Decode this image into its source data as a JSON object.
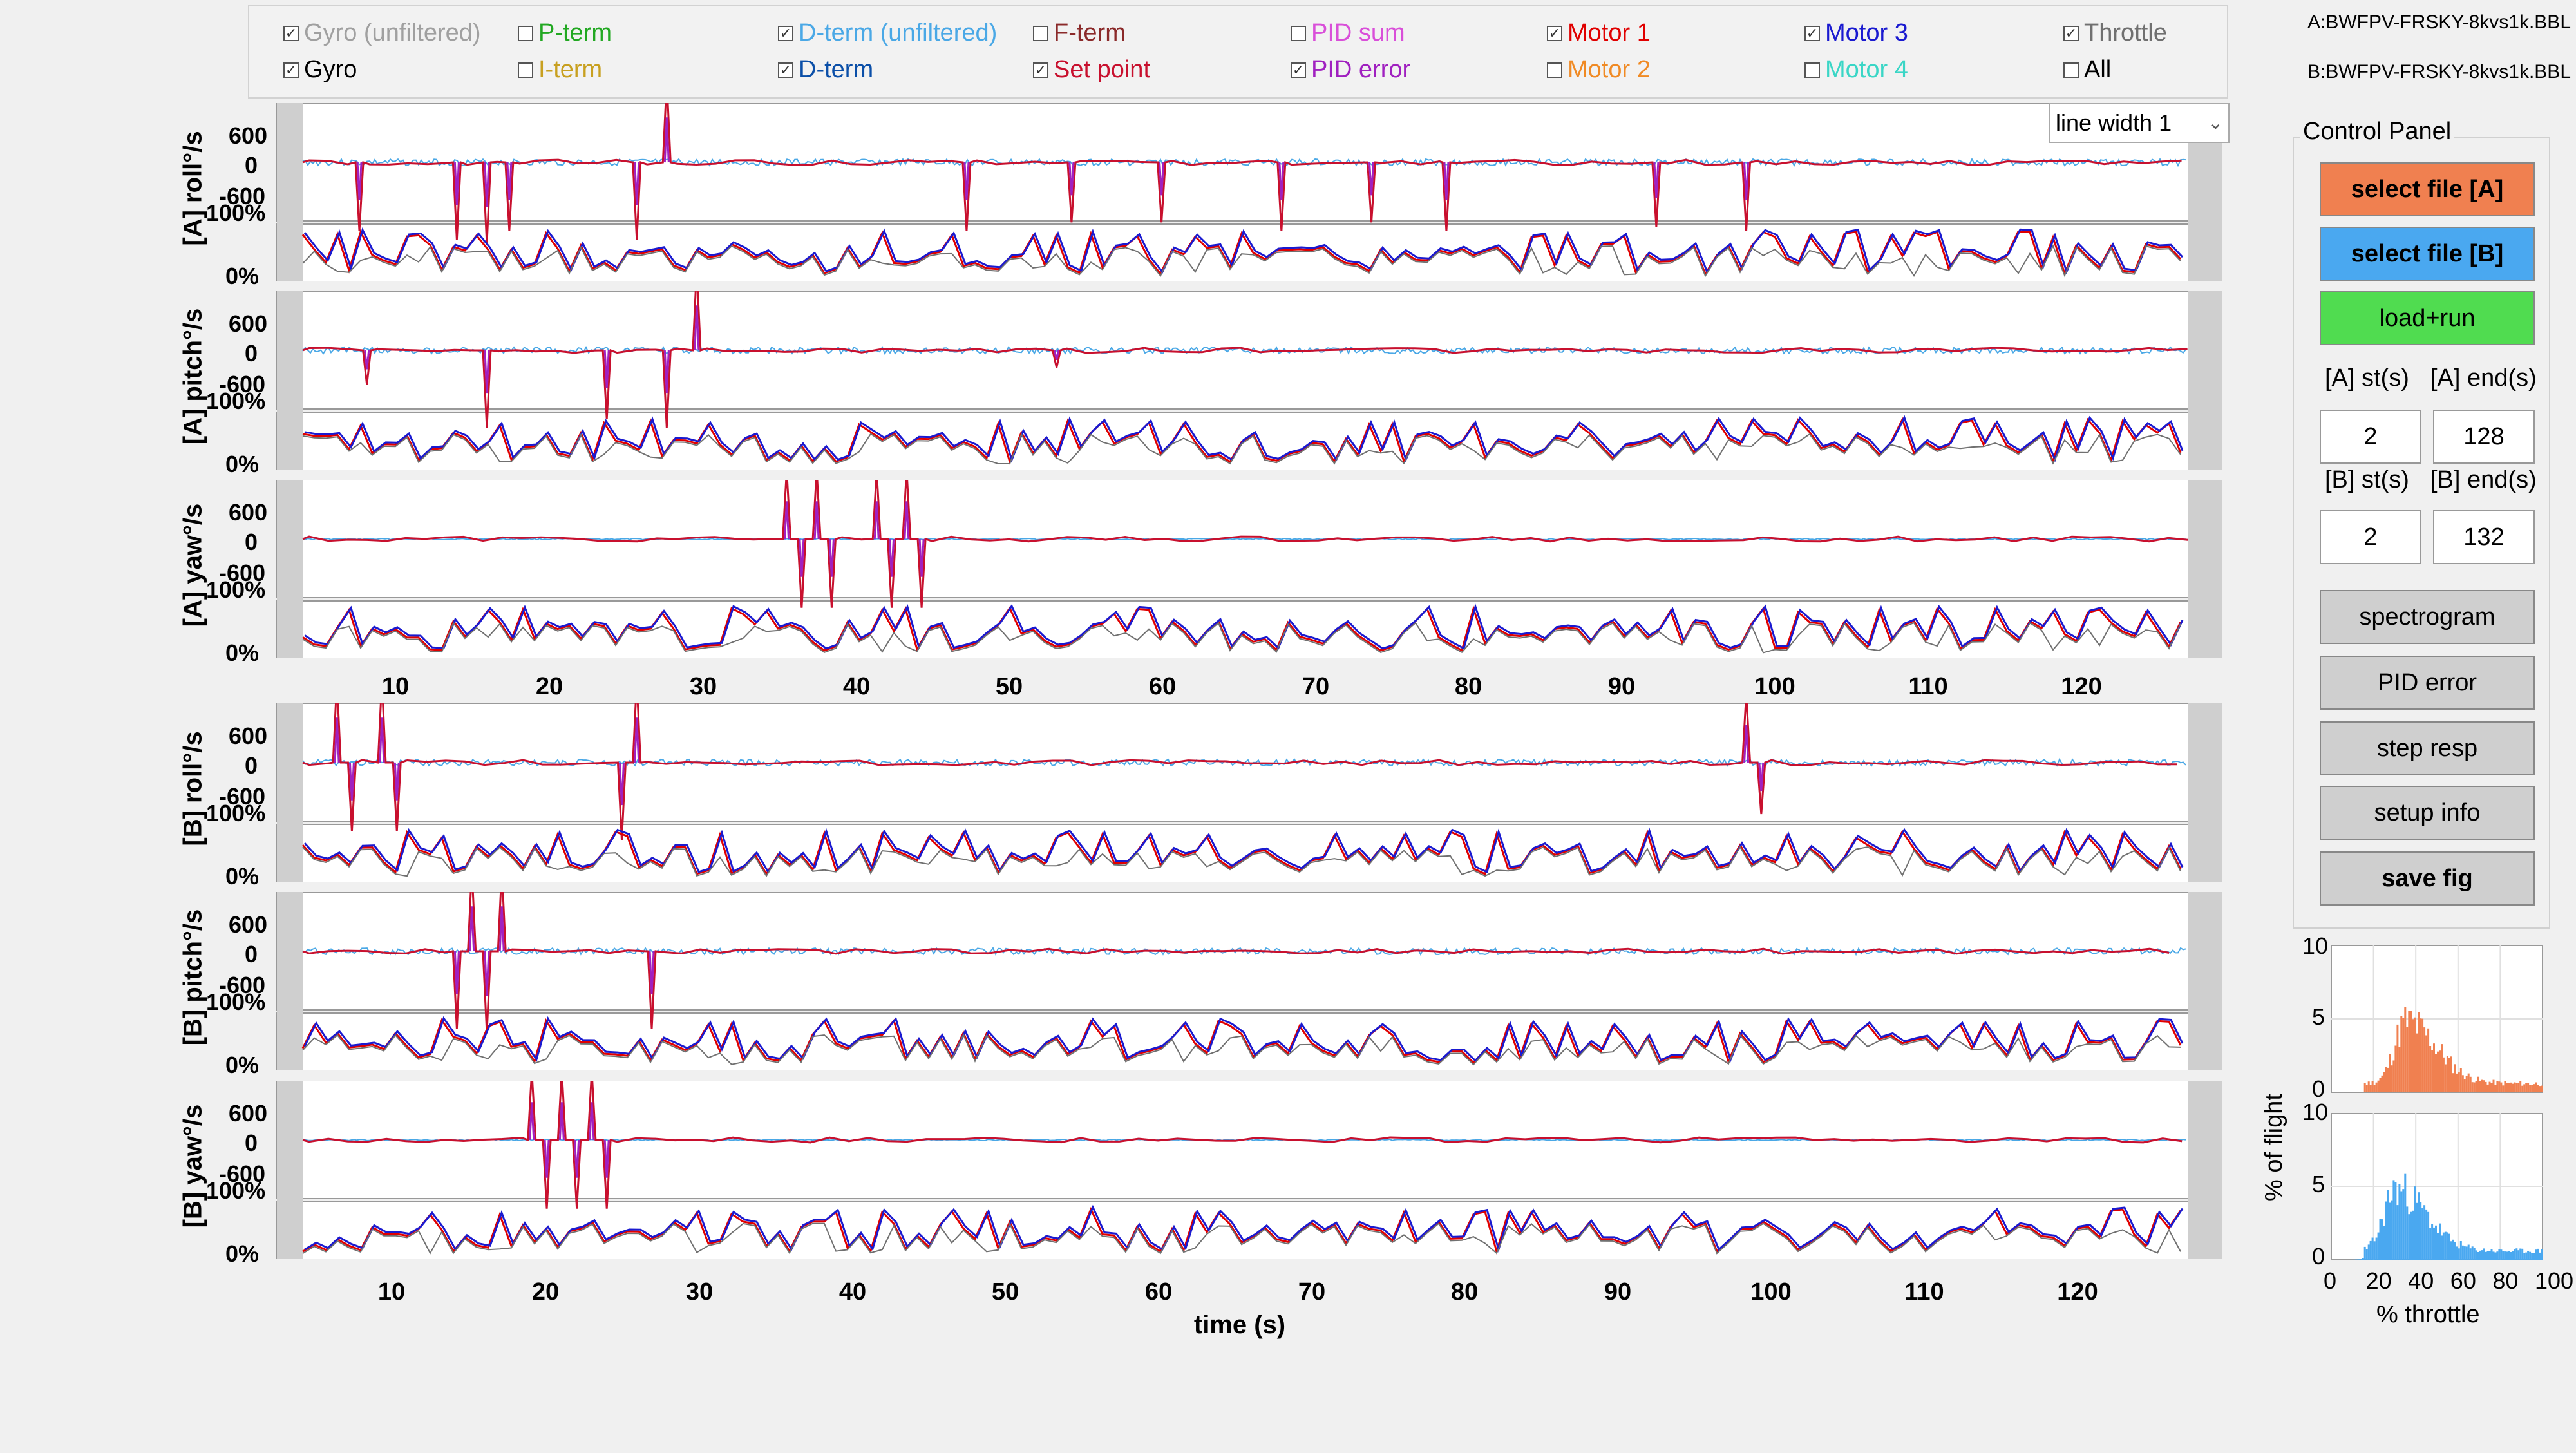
{
  "legend": {
    "items": [
      {
        "label": "Gyro (unfiltered)",
        "checked": true,
        "color": "#a0a0a0"
      },
      {
        "label": "Gyro",
        "checked": true,
        "color": "#000000"
      },
      {
        "label": "P-term",
        "checked": false,
        "color": "#22a822"
      },
      {
        "label": "I-term",
        "checked": false,
        "color": "#c8a020"
      },
      {
        "label": "D-term (unfiltered)",
        "checked": true,
        "color": "#4aa8e6"
      },
      {
        "label": "D-term",
        "checked": true,
        "color": "#0b4fa8"
      },
      {
        "label": "F-term",
        "checked": false,
        "color": "#8b2a2a"
      },
      {
        "label": "Set point",
        "checked": true,
        "color": "#c8102e"
      },
      {
        "label": "PID sum",
        "checked": false,
        "color": "#d94fd9"
      },
      {
        "label": "PID error",
        "checked": true,
        "color": "#a020c0"
      },
      {
        "label": "Motor 1",
        "checked": true,
        "color": "#e00000"
      },
      {
        "label": "Motor 2",
        "checked": false,
        "color": "#f08a24"
      },
      {
        "label": "Motor 3",
        "checked": true,
        "color": "#1a1ad0"
      },
      {
        "label": "Motor 4",
        "checked": false,
        "color": "#3ad6c6"
      },
      {
        "label": "Throttle",
        "checked": true,
        "color": "#707070"
      },
      {
        "label": "All",
        "checked": false,
        "color": "#000000"
      }
    ]
  },
  "files": {
    "a": "A:BWFPV-FRSKY-8kvs1k.BBL",
    "b": "B:BWFPV-FRSKY-8kvs1k.BBL"
  },
  "line_width_select": "line width 1",
  "control_panel": {
    "title": "Control Panel",
    "select_a": "select file [A]",
    "select_b": "select file [B]",
    "load_run": "load+run",
    "a_st_label": "[A] st(s)",
    "a_end_label": "[A] end(s)",
    "a_st": "2",
    "a_end": "128",
    "b_st_label": "[B] st(s)",
    "b_end_label": "[B] end(s)",
    "b_st": "2",
    "b_end": "132",
    "spectrogram": "spectrogram",
    "pid_error": "PID error",
    "step_resp": "step resp",
    "setup_info": "setup info",
    "save_fig": "save fig",
    "colors": {
      "select_a": "#f08050",
      "select_b": "#4aa8f0",
      "load_run": "#50dc50",
      "gray": "#cfcfcf"
    }
  },
  "panels": [
    {
      "ylabel": "[A] roll°/s",
      "ticks": [
        "600",
        "0",
        "-600",
        "100%",
        "0%"
      ]
    },
    {
      "ylabel": "[A] pitch°/s",
      "ticks": [
        "600",
        "0",
        "-600",
        "100%",
        "0%"
      ]
    },
    {
      "ylabel": "[A] yaw°/s",
      "ticks": [
        "600",
        "0",
        "-600",
        "100%",
        "0%"
      ]
    },
    {
      "ylabel": "[B] roll°/s",
      "ticks": [
        "600",
        "0",
        "-600",
        "100%",
        "0%"
      ]
    },
    {
      "ylabel": "[B] pitch°/s",
      "ticks": [
        "600",
        "0",
        "-600",
        "100%",
        "0%"
      ]
    },
    {
      "ylabel": "[B] yaw°/s",
      "ticks": [
        "600",
        "0",
        "-600",
        "100%",
        "0%"
      ]
    }
  ],
  "time_axis": {
    "ticks": [
      "10",
      "20",
      "30",
      "40",
      "50",
      "60",
      "70",
      "80",
      "90",
      "100",
      "110",
      "120"
    ],
    "label": "time (s)"
  },
  "histogram": {
    "ylabel": "% of flight",
    "xlabel": "% throttle",
    "xticks": [
      "0",
      "20",
      "40",
      "60",
      "80",
      "100"
    ],
    "yticks_top": [
      "10",
      "5",
      "0"
    ],
    "yticks_bottom": [
      "10",
      "5",
      "0"
    ],
    "color_a": "#f08050",
    "color_b": "#4aa8f0"
  },
  "chart_data": {
    "type": "line",
    "x_range": [
      2,
      130
    ],
    "y_range_rate": [
      -1000,
      1000
    ],
    "y_range_motor": [
      0,
      100
    ],
    "series": [
      {
        "name": "Gyro"
      },
      {
        "name": "D-term (unfiltered)"
      },
      {
        "name": "D-term"
      },
      {
        "name": "Set point"
      },
      {
        "name": "PID error"
      },
      {
        "name": "Motor 1"
      },
      {
        "name": "Motor 3"
      },
      {
        "name": "Throttle"
      }
    ],
    "a_spikes": {
      "roll": [
        [
          7.5,
          -800
        ],
        [
          14,
          -900
        ],
        [
          16,
          -950
        ],
        [
          17.5,
          -800
        ],
        [
          28,
          950
        ],
        [
          26,
          -900
        ],
        [
          48,
          -800
        ],
        [
          55,
          -700
        ],
        [
          61,
          -700
        ],
        [
          69,
          -800
        ],
        [
          75,
          -700
        ],
        [
          80,
          -800
        ],
        [
          94,
          -750
        ],
        [
          100,
          -800
        ]
      ],
      "pitch": [
        [
          16,
          -900
        ],
        [
          24,
          -800
        ],
        [
          28,
          -900
        ],
        [
          30,
          950
        ],
        [
          8,
          -400
        ],
        [
          54,
          -200
        ]
      ],
      "yaw": [
        [
          36,
          800
        ],
        [
          37,
          -800
        ],
        [
          38,
          800
        ],
        [
          39,
          -800
        ],
        [
          42,
          800
        ],
        [
          43,
          -800
        ],
        [
          44,
          800
        ],
        [
          45,
          -800
        ]
      ]
    },
    "b_spikes": {
      "roll": [
        [
          6,
          950
        ],
        [
          7,
          -800
        ],
        [
          9,
          950
        ],
        [
          10,
          -800
        ],
        [
          26,
          950
        ],
        [
          25,
          -900
        ],
        [
          100,
          800
        ],
        [
          101,
          -600
        ]
      ],
      "pitch": [
        [
          14,
          -900
        ],
        [
          15,
          950
        ],
        [
          16,
          -950
        ],
        [
          17,
          950
        ],
        [
          27,
          -900
        ]
      ],
      "yaw": [
        [
          19,
          800
        ],
        [
          20,
          -800
        ],
        [
          21,
          800
        ],
        [
          22,
          -800
        ],
        [
          23,
          800
        ],
        [
          24,
          -800
        ]
      ]
    },
    "hist_a": {
      "peak_pct_throttle": 35,
      "peak_pct_flight": 4
    },
    "hist_b": {
      "peak_pct_throttle": 30,
      "peak_pct_flight": 5
    }
  }
}
